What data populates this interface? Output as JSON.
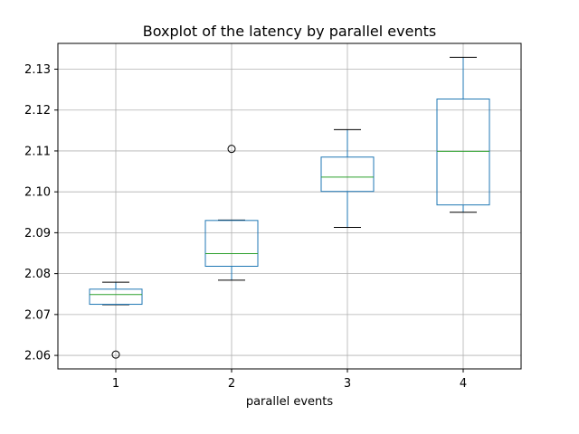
{
  "chart_data": {
    "type": "box",
    "title": "Boxplot of the latency by parallel events",
    "xlabel": "parallel events",
    "ylabel": "",
    "categories": [
      "1",
      "2",
      "3",
      "4"
    ],
    "ylim": [
      2.0567,
      2.1363
    ],
    "yticks": [
      2.06,
      2.07,
      2.08,
      2.09,
      2.1,
      2.11,
      2.12,
      2.13
    ],
    "ytick_labels": [
      "2.06",
      "2.07",
      "2.08",
      "2.09",
      "2.10",
      "2.11",
      "2.12",
      "2.13"
    ],
    "grid": true,
    "boxes": [
      {
        "category": "1",
        "whisker_low": 2.0724,
        "q1": 2.0725,
        "median": 2.0749,
        "q3": 2.0762,
        "whisker_high": 2.0779,
        "fliers": [
          2.0602
        ]
      },
      {
        "category": "2",
        "whisker_low": 2.0784,
        "q1": 2.0818,
        "median": 2.0849,
        "q3": 2.093,
        "whisker_high": 2.0931,
        "fliers": [
          2.1105
        ]
      },
      {
        "category": "3",
        "whisker_low": 2.0913,
        "q1": 2.1001,
        "median": 2.1036,
        "q3": 2.1085,
        "whisker_high": 2.1152,
        "fliers": []
      },
      {
        "category": "4",
        "whisker_low": 2.095,
        "q1": 2.0968,
        "median": 2.1099,
        "q3": 2.1227,
        "whisker_high": 2.1329,
        "fliers": []
      }
    ],
    "colors": {
      "box": "#1f77b4",
      "median": "#2ca02c",
      "whisker_cap": "#000000",
      "grid": "#b0b0b0",
      "axes": "#000000"
    }
  }
}
